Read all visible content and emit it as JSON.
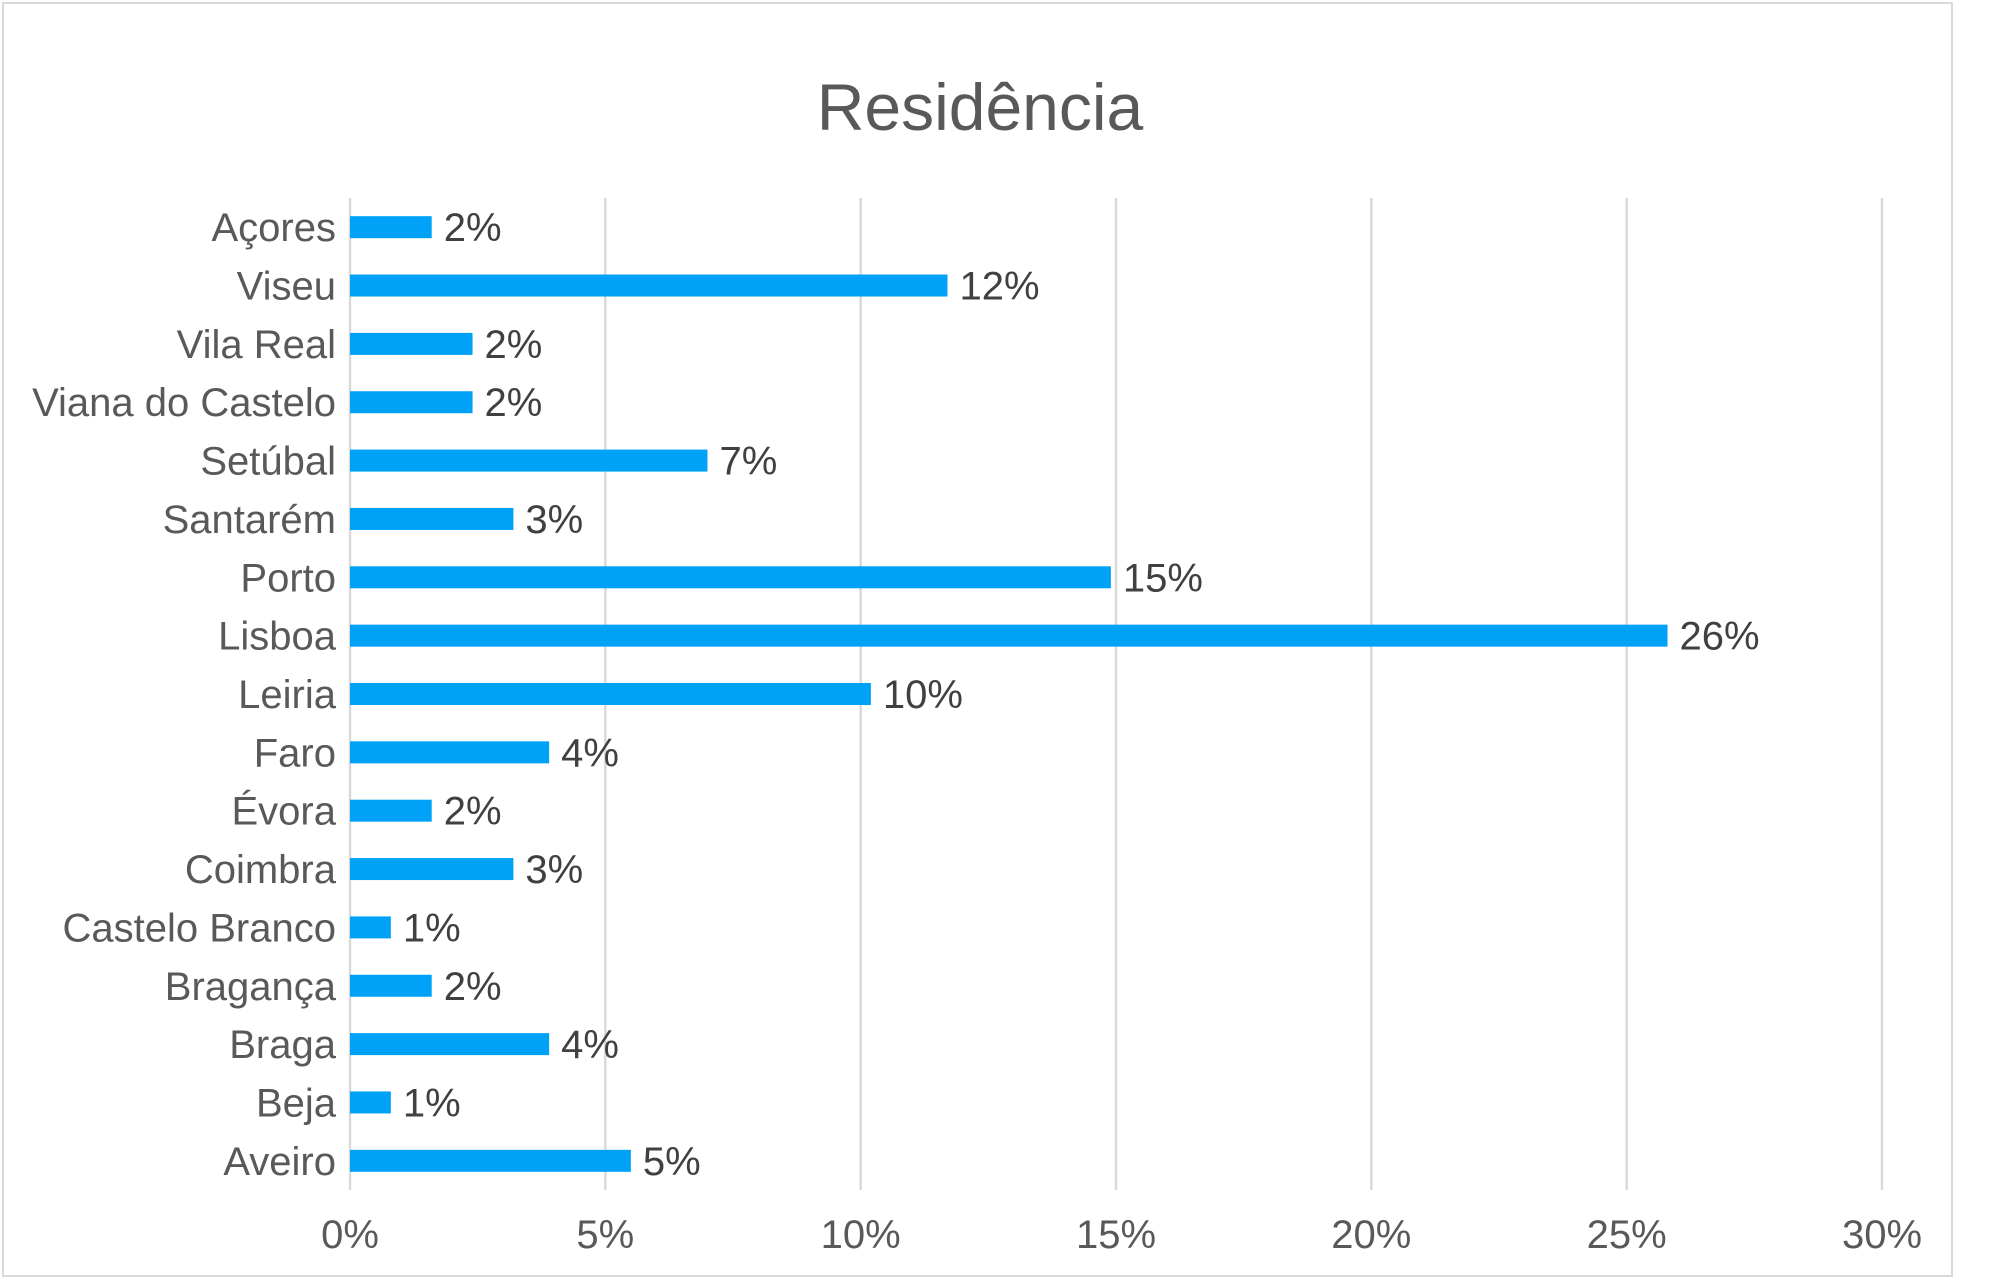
{
  "chart_data": {
    "type": "bar",
    "orientation": "horizontal",
    "title": "Residência",
    "categories": [
      "Açores",
      "Viseu",
      "Vila Real",
      "Viana do Castelo",
      "Setúbal",
      "Santarém",
      "Porto",
      "Lisboa",
      "Leiria",
      "Faro",
      "Évora",
      "Coimbra",
      "Castelo Branco",
      "Bragança",
      "Braga",
      "Beja",
      "Aveiro"
    ],
    "values": [
      1.6,
      11.7,
      2.4,
      2.4,
      7.0,
      3.2,
      14.9,
      25.8,
      10.2,
      3.9,
      1.6,
      3.2,
      0.8,
      1.6,
      3.9,
      0.8,
      5.5
    ],
    "data_labels": [
      "2%",
      "12%",
      "2%",
      "2%",
      "7%",
      "3%",
      "15%",
      "26%",
      "10%",
      "4%",
      "2%",
      "3%",
      "1%",
      "2%",
      "4%",
      "1%",
      "5%"
    ],
    "xlim": [
      0,
      30
    ],
    "x_ticks": [
      0,
      5,
      10,
      15,
      20,
      25,
      30
    ],
    "x_tick_labels": [
      "0%",
      "5%",
      "10%",
      "15%",
      "20%",
      "25%",
      "30%"
    ],
    "xlabel": "",
    "ylabel": "",
    "grid": "vertical",
    "legend": "none",
    "bar_color": "#00a2f7",
    "grid_color": "#d9d9d9",
    "text_color": "#595959"
  }
}
